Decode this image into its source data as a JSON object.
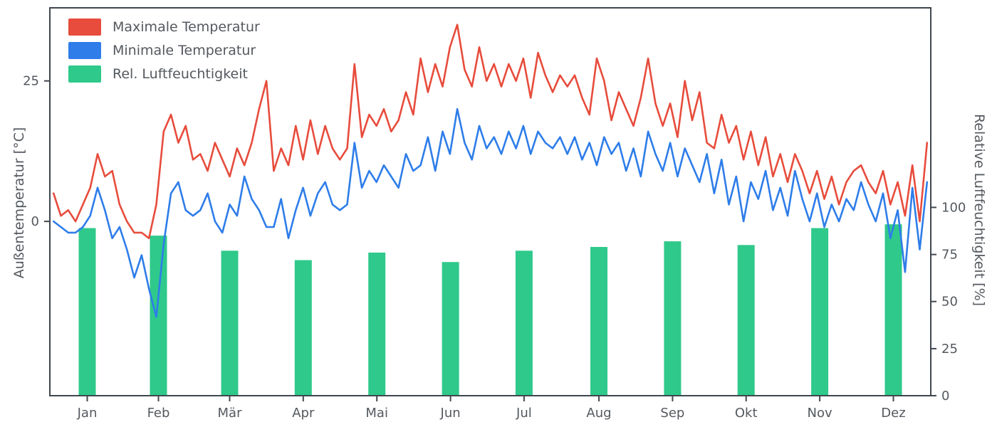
{
  "legend": {
    "items": [
      {
        "label": "Maximale Temperatur",
        "color": "#e74c3c"
      },
      {
        "label": "Minimale Temperatur",
        "color": "#2e7de9"
      },
      {
        "label": "Rel. Luftfeuchtigkeit",
        "color": "#2fc98b"
      }
    ]
  },
  "axes": {
    "left_label": "Außentemperatur [°C]",
    "right_label": "Relative Luftfeuchtigkeit [%]"
  },
  "chart_data": {
    "type": "line+bar",
    "title": "",
    "months": [
      "Jan",
      "Feb",
      "Mär",
      "Apr",
      "Mai",
      "Jun",
      "Jul",
      "Aug",
      "Sep",
      "Okt",
      "Nov",
      "Dez"
    ],
    "x_unit": "day of year (daily samples for lines, monthly bars)",
    "left_axis": {
      "label": "Außentemperatur [°C]",
      "ticks": [
        0,
        25
      ],
      "range": [
        -31,
        38
      ]
    },
    "right_axis": {
      "label": "Relative Luftfeuchtigkeit [%]",
      "ticks": [
        0,
        25,
        50,
        75,
        100
      ],
      "range": [
        0,
        206
      ]
    },
    "grid": false,
    "legend_position": "upper left",
    "series": [
      {
        "name": "Maximale Temperatur",
        "type": "line",
        "axis": "left",
        "color": "#e74c3c",
        "values": [
          5,
          1,
          2,
          0,
          3,
          6,
          12,
          8,
          9,
          3,
          0,
          -2,
          -2,
          -3,
          3,
          16,
          19,
          14,
          17,
          11,
          12,
          9,
          14,
          11,
          8,
          13,
          10,
          14,
          20,
          25,
          9,
          13,
          10,
          17,
          11,
          18,
          12,
          17,
          13,
          11,
          13,
          28,
          15,
          19,
          17,
          20,
          16,
          18,
          23,
          19,
          29,
          23,
          28,
          24,
          31,
          35,
          27,
          24,
          31,
          25,
          28,
          24,
          28,
          25,
          29,
          22,
          30,
          26,
          23,
          26,
          24,
          26,
          22,
          19,
          29,
          25,
          18,
          23,
          20,
          17,
          22,
          29,
          21,
          17,
          21,
          15,
          25,
          18,
          23,
          14,
          13,
          19,
          14,
          17,
          11,
          16,
          10,
          15,
          8,
          12,
          7,
          12,
          9,
          5,
          9,
          4,
          8,
          3,
          7,
          9,
          10,
          7,
          5,
          9,
          3,
          7,
          1,
          10,
          0,
          14
        ]
      },
      {
        "name": "Minimale Temperatur",
        "type": "line",
        "axis": "left",
        "color": "#2e7de9",
        "values": [
          0,
          -1,
          -2,
          -2,
          -1,
          1,
          6,
          2,
          -3,
          -1,
          -5,
          -10,
          -6,
          -12,
          -17,
          -4,
          5,
          7,
          2,
          1,
          2,
          5,
          0,
          -2,
          3,
          1,
          8,
          4,
          2,
          -1,
          -1,
          4,
          -3,
          2,
          6,
          1,
          5,
          7,
          3,
          2,
          3,
          14,
          6,
          9,
          7,
          10,
          8,
          6,
          12,
          9,
          10,
          15,
          9,
          16,
          12,
          20,
          14,
          11,
          17,
          13,
          15,
          12,
          16,
          13,
          17,
          12,
          16,
          14,
          13,
          15,
          12,
          15,
          11,
          14,
          10,
          15,
          12,
          14,
          9,
          13,
          8,
          16,
          12,
          9,
          14,
          8,
          13,
          10,
          7,
          12,
          5,
          11,
          3,
          8,
          0,
          7,
          4,
          9,
          2,
          6,
          1,
          9,
          4,
          0,
          5,
          -1,
          3,
          0,
          4,
          2,
          7,
          3,
          0,
          5,
          -3,
          2,
          -9,
          6,
          -5,
          7
        ]
      },
      {
        "name": "Rel. Luftfeuchtigkeit",
        "type": "bar",
        "axis": "right",
        "color": "#2fc98b",
        "values": [
          89,
          85,
          77,
          72,
          76,
          71,
          77,
          79,
          82,
          80,
          89,
          91
        ]
      }
    ]
  }
}
